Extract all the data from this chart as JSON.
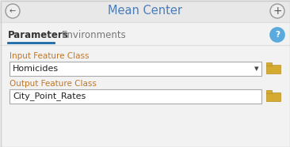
{
  "title": "Mean Center",
  "title_color": "#4a7cb8",
  "title_fontsize": 10.5,
  "bg_color": "#f2f2f2",
  "header_bg": "#e8e8e8",
  "tab1": "Parameters",
  "tab2": "Environments",
  "tab_color": "#333333",
  "tab_fontsize": 8.5,
  "tab_underline_color": "#1a6aaa",
  "label1": "Input Feature Class",
  "label2": "Output Feature Class",
  "value1": "Homicides",
  "value2": "City_Point_Rates",
  "label_color": "#c07828",
  "value_color": "#222222",
  "box_border_color": "#aaaaaa",
  "box_bg": "#ffffff",
  "folder_color": "#d4aa30",
  "folder_border": "#b89020",
  "help_color": "#5aaadd",
  "circle_border": "#999999",
  "circle_bg": "#eeeeee",
  "border_color": "#cccccc",
  "divider_color": "#dddddd"
}
